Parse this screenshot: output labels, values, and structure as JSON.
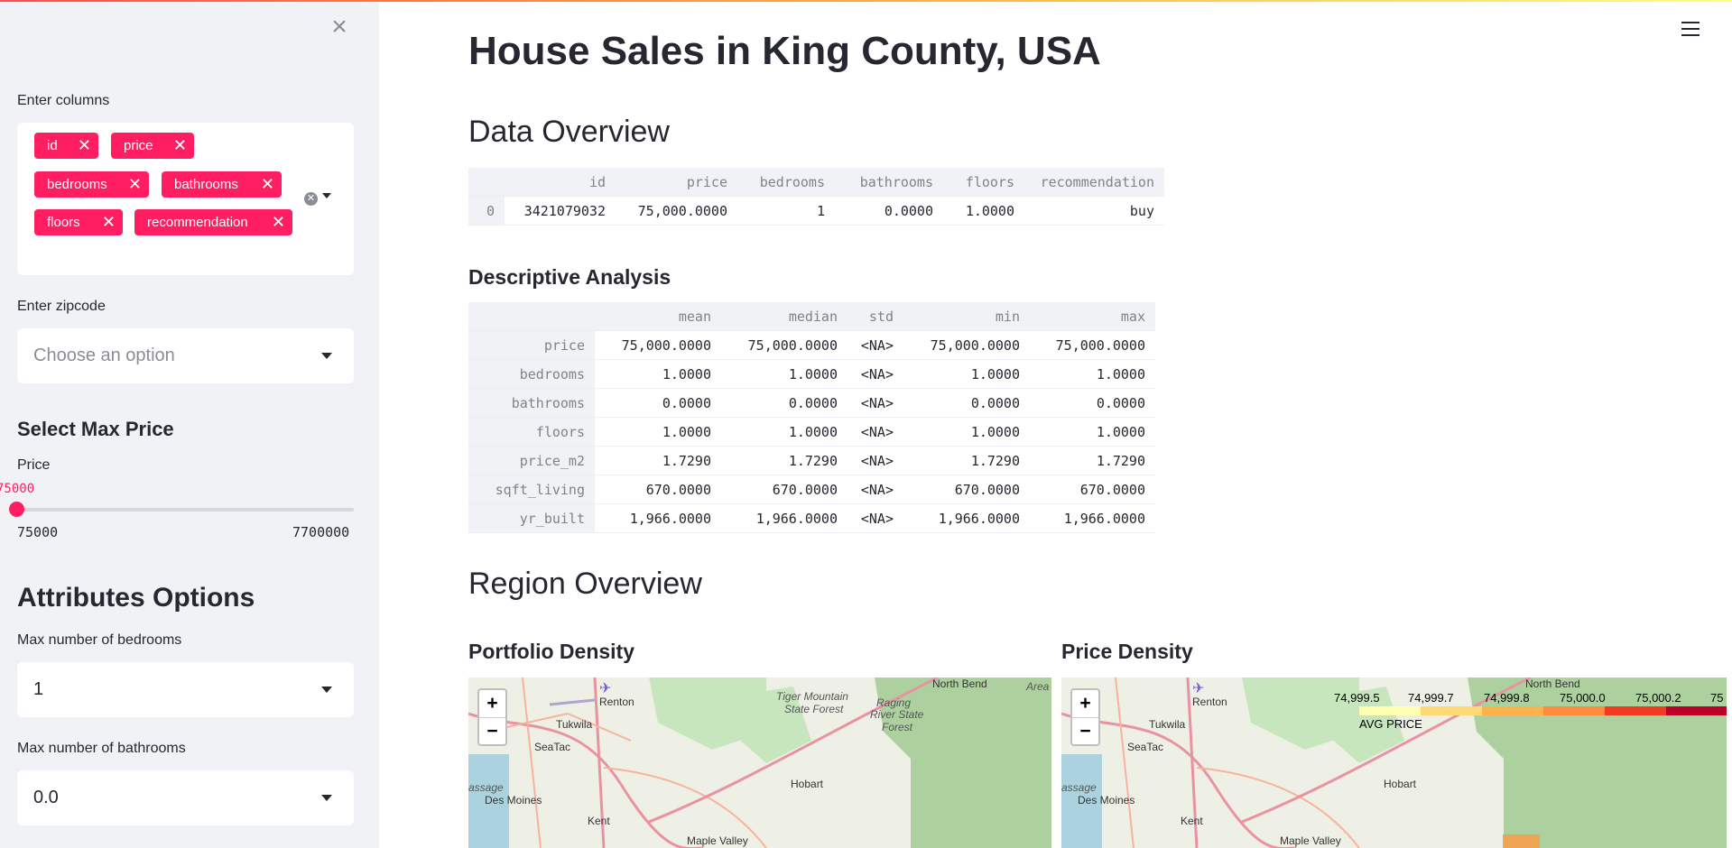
{
  "sidebar": {
    "close_icon": "×",
    "columns_label": "Enter columns",
    "selected_columns": [
      "id",
      "price",
      "bedrooms",
      "bathrooms",
      "floors",
      "recommendation"
    ],
    "zipcode_label": "Enter zipcode",
    "zipcode_placeholder": "Choose an option",
    "max_price_heading": "Select Max Price",
    "price_label": "Price",
    "price_value": "75000",
    "price_min": "75000",
    "price_max": "7700000",
    "attributes_heading": "Attributes Options",
    "bedrooms_label": "Max number of bedrooms",
    "bedrooms_value": "1",
    "bathrooms_label": "Max number of bathrooms",
    "bathrooms_value": "0.0"
  },
  "main": {
    "title": "House Sales in King County, USA",
    "data_overview_heading": "Data Overview",
    "overview_table": {
      "columns": [
        "",
        "id",
        "price",
        "bedrooms",
        "bathrooms",
        "floors",
        "recommendation"
      ],
      "rows": [
        [
          "0",
          "3421079032",
          "75,000.0000",
          "1",
          "0.0000",
          "1.0000",
          "buy"
        ]
      ]
    },
    "descriptive_heading": "Descriptive Analysis",
    "descriptive_table": {
      "columns": [
        "",
        "mean",
        "median",
        "std",
        "min",
        "max"
      ],
      "rows": [
        [
          "price",
          "75,000.0000",
          "75,000.0000",
          "<NA>",
          "75,000.0000",
          "75,000.0000"
        ],
        [
          "bedrooms",
          "1.0000",
          "1.0000",
          "<NA>",
          "1.0000",
          "1.0000"
        ],
        [
          "bathrooms",
          "0.0000",
          "0.0000",
          "<NA>",
          "0.0000",
          "0.0000"
        ],
        [
          "floors",
          "1.0000",
          "1.0000",
          "<NA>",
          "1.0000",
          "1.0000"
        ],
        [
          "price_m2",
          "1.7290",
          "1.7290",
          "<NA>",
          "1.7290",
          "1.7290"
        ],
        [
          "sqft_living",
          "670.0000",
          "670.0000",
          "<NA>",
          "670.0000",
          "670.0000"
        ],
        [
          "yr_built",
          "1,966.0000",
          "1,966.0000",
          "<NA>",
          "1,966.0000",
          "1,966.0000"
        ]
      ]
    },
    "region_heading": "Region Overview",
    "portfolio_heading": "Portfolio Density",
    "price_density_heading": "Price Density",
    "zoom_in": "+",
    "zoom_out": "−",
    "map_labels": {
      "renton": "Renton",
      "tukwila": "Tukwila",
      "seatac": "SeaTac",
      "des_moines": "Des Moines",
      "kent": "Kent",
      "maple_valley": "Maple Valley",
      "hobart": "Hobart",
      "north_bend": "North Bend",
      "tiger_mountain": "Tiger Mountain",
      "state_forest": "State Forest",
      "raging": "Raging",
      "river_state": "River State",
      "forest": "Forest",
      "area": "Area",
      "passage": "assage"
    },
    "legend": {
      "ticks": [
        "74,999.5",
        "74,999.7",
        "74,999.8",
        "75,000.0",
        "75,000.2",
        "75"
      ],
      "title": "AVG PRICE",
      "colors": [
        "#ffffb2",
        "#fed976",
        "#feb24c",
        "#fd8d3c",
        "#f03b20",
        "#bd0026"
      ]
    }
  }
}
